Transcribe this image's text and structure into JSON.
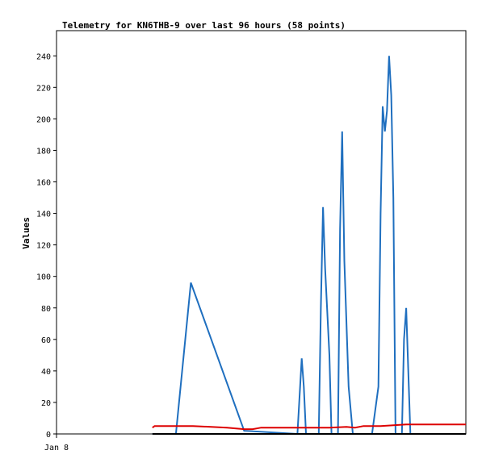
{
  "chart_data": {
    "type": "line",
    "title": "Telemetry for KN6THB-9 over last 96 hours (58 points)",
    "xlabel": "",
    "ylabel": "Values",
    "x_tick_labels": [
      "Jan 8"
    ],
    "ylim": [
      0,
      256
    ],
    "xlim": [
      0,
      96
    ],
    "y_ticks": [
      0,
      20,
      40,
      60,
      80,
      100,
      120,
      140,
      160,
      180,
      200,
      220,
      240
    ],
    "grid": false,
    "legend": "none",
    "series": [
      {
        "color": "#1f6fbf",
        "points": [
          [
            22.5,
            0
          ],
          [
            28.0,
            0
          ],
          [
            31.5,
            96
          ],
          [
            44.0,
            2
          ],
          [
            56.5,
            0
          ],
          [
            57.5,
            48
          ],
          [
            58.0,
            30
          ],
          [
            58.5,
            0
          ],
          [
            61.5,
            0
          ],
          [
            62.0,
            80
          ],
          [
            62.5,
            144
          ],
          [
            63.0,
            105
          ],
          [
            64.0,
            50
          ],
          [
            64.5,
            0
          ],
          [
            66.0,
            0
          ],
          [
            66.5,
            130
          ],
          [
            67.0,
            192
          ],
          [
            67.5,
            110
          ],
          [
            68.5,
            30
          ],
          [
            69.5,
            0
          ],
          [
            74.0,
            0
          ],
          [
            75.5,
            30
          ],
          [
            76.0,
            140
          ],
          [
            76.5,
            208
          ],
          [
            77.0,
            192
          ],
          [
            77.5,
            205
          ],
          [
            78.0,
            240
          ],
          [
            78.5,
            215
          ],
          [
            79.0,
            150
          ],
          [
            79.5,
            0
          ],
          [
            81.0,
            0
          ],
          [
            81.5,
            60
          ],
          [
            82.0,
            80
          ],
          [
            82.5,
            40
          ],
          [
            83.0,
            0
          ]
        ]
      },
      {
        "color": "#dd0000",
        "points": [
          [
            22.5,
            4
          ],
          [
            23.0,
            5
          ],
          [
            32.0,
            5
          ],
          [
            40.0,
            4
          ],
          [
            44.0,
            3
          ],
          [
            46.0,
            3
          ],
          [
            48.0,
            4
          ],
          [
            56.0,
            4
          ],
          [
            64.0,
            4
          ],
          [
            68.0,
            4.5
          ],
          [
            70.0,
            4
          ],
          [
            72.0,
            5
          ],
          [
            76.0,
            5
          ],
          [
            82.0,
            6
          ],
          [
            96.0,
            6
          ]
        ]
      },
      {
        "color": "#000000",
        "points": [
          [
            22.5,
            0
          ],
          [
            96.0,
            0
          ]
        ]
      }
    ]
  }
}
